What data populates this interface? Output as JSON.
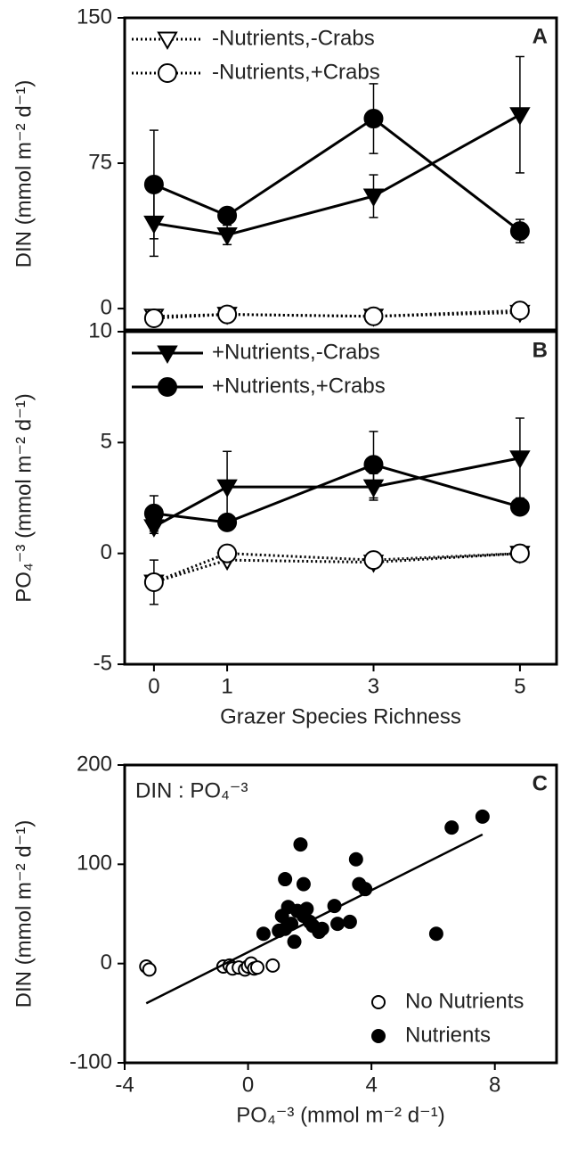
{
  "chart_data": [
    {
      "type": "line",
      "label": "A",
      "ylabel": "DIN (mmol  m⁻² d⁻¹)",
      "xlim": [
        -0.4,
        5.5
      ],
      "ylim": [
        -11,
        150
      ],
      "yticks": [
        0,
        75,
        150
      ],
      "legend": "upper left",
      "series": [
        {
          "name": "-Nutrients,-Crabs",
          "color": "#000",
          "marker": "triangle",
          "filled": false,
          "dash": true,
          "x": [
            0,
            1,
            3,
            5
          ],
          "values": [
            -4,
            -3,
            -4,
            -2
          ]
        },
        {
          "name": "-Nutrients,+Crabs",
          "color": "#000",
          "marker": "circle",
          "filled": false,
          "dash": true,
          "x": [
            0,
            1,
            3,
            5
          ],
          "values": [
            -5,
            -3,
            -4,
            -1
          ]
        },
        {
          "color": "#000",
          "marker": "triangle",
          "filled": true,
          "dash": false,
          "x": [
            0,
            1,
            3,
            5
          ],
          "values": [
            44,
            38,
            58,
            100
          ],
          "errors": [
            17,
            5,
            11,
            30
          ]
        },
        {
          "color": "#000",
          "marker": "circle",
          "filled": true,
          "dash": false,
          "x": [
            0,
            1,
            3,
            5
          ],
          "values": [
            64,
            48,
            98,
            40
          ],
          "errors": [
            28,
            4,
            18,
            6
          ]
        }
      ]
    },
    {
      "type": "line",
      "label": "B",
      "ylabel": "PO₄⁻³ (mmol m⁻² d⁻¹)",
      "xlabel": "Grazer Species Richness",
      "xlim": [
        -0.4,
        5.5
      ],
      "xticks": [
        0,
        1,
        3,
        5
      ],
      "ylim": [
        -5,
        10
      ],
      "yticks": [
        -5,
        0,
        5,
        10
      ],
      "legend": "upper left",
      "series": [
        {
          "color": "#000",
          "marker": "triangle",
          "filled": false,
          "dash": true,
          "x": [
            0,
            1,
            3,
            5
          ],
          "values": [
            -1.3,
            -0.3,
            -0.4,
            0
          ]
        },
        {
          "color": "#000",
          "marker": "circle",
          "filled": false,
          "dash": true,
          "x": [
            0,
            1,
            3,
            5
          ],
          "values": [
            -1.3,
            0,
            -0.3,
            0
          ],
          "errors": [
            1,
            0.2,
            0.2,
            0.2
          ]
        },
        {
          "name": "+Nutrients,-Crabs",
          "color": "#000",
          "marker": "triangle",
          "filled": true,
          "dash": false,
          "x": [
            0,
            1,
            3,
            5
          ],
          "values": [
            1.2,
            3.0,
            3.0,
            4.3
          ],
          "errors": [
            0.3,
            1.6,
            0.6,
            1.8
          ]
        },
        {
          "name": "+Nutrients,+Crabs",
          "color": "#000",
          "marker": "circle",
          "filled": true,
          "dash": false,
          "x": [
            0,
            1,
            3,
            5
          ],
          "values": [
            1.8,
            1.4,
            4.0,
            2.1
          ],
          "errors": [
            0.8,
            0.2,
            1.5,
            0.3
          ]
        }
      ]
    },
    {
      "type": "scatter",
      "label": "C",
      "annotation": "DIN : PO₄⁻³",
      "ylabel": "DIN (mmol m⁻² d⁻¹)",
      "xlabel": "PO₄⁻³ (mmol m⁻² d⁻¹)",
      "xlim": [
        -4,
        10
      ],
      "xticks": [
        -4,
        0,
        4,
        8
      ],
      "ylim": [
        -100,
        200
      ],
      "yticks": [
        -100,
        0,
        100,
        200
      ],
      "legend": "lower right",
      "series": [
        {
          "name": "No Nutrients",
          "color": "#000",
          "filled": false,
          "x": [
            -3.3,
            -3.2,
            -0.8,
            -0.6,
            -0.5,
            -0.3,
            -0.1,
            0,
            0.1,
            0.2,
            0.3,
            0.8
          ],
          "values": [
            -3,
            -6,
            -3,
            -2,
            -5,
            -4,
            -6,
            -3,
            0,
            -5,
            -4,
            -2
          ]
        },
        {
          "name": "Nutrients",
          "color": "#000",
          "filled": true,
          "x": [
            0.5,
            1,
            1.1,
            1.2,
            1.2,
            1.3,
            1.4,
            1.5,
            1.6,
            1.7,
            1.8,
            1.8,
            1.9,
            2.0,
            2.1,
            2.3,
            2.4,
            2.8,
            2.9,
            3.3,
            3.5,
            3.6,
            3.8,
            6.1,
            6.6,
            7.6
          ],
          "values": [
            30,
            33,
            48,
            85,
            35,
            57,
            40,
            22,
            53,
            120,
            48,
            80,
            55,
            42,
            38,
            32,
            35,
            58,
            40,
            42,
            105,
            80,
            75,
            30,
            137,
            148
          ]
        }
      ],
      "fit": {
        "x": [
          -3.3,
          7.6
        ],
        "values": [
          -40,
          130
        ]
      }
    }
  ]
}
